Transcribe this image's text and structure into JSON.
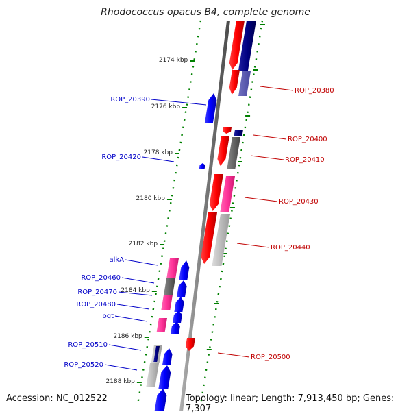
{
  "title": "Rhodococcus opacus B4, complete genome",
  "accession": "Accession: NC_012522",
  "summary": "Topology: linear; Length: 7,913,450 bp; Genes: 7,307",
  "scale_ticks": [
    {
      "label": "2174 kbp"
    },
    {
      "label": "2176 kbp"
    },
    {
      "label": "2178 kbp"
    },
    {
      "label": "2180 kbp"
    },
    {
      "label": "2182 kbp"
    },
    {
      "label": "2184 kbp"
    },
    {
      "label": "2186 kbp"
    },
    {
      "label": "2188 kbp"
    }
  ],
  "labels_right": [
    {
      "text": "ROP_20380"
    },
    {
      "text": "ROP_20400"
    },
    {
      "text": "ROP_20410"
    },
    {
      "text": "ROP_20430"
    },
    {
      "text": "ROP_20440"
    },
    {
      "text": "ROP_20500"
    }
  ],
  "labels_left": [
    {
      "text": "ROP_20390"
    },
    {
      "text": "ROP_20420"
    },
    {
      "text": "alkA"
    },
    {
      "text": "ROP_20460"
    },
    {
      "text": "ROP_20470"
    },
    {
      "text": "ROP_20480"
    },
    {
      "text": "ogt"
    },
    {
      "text": "ROP_20510"
    },
    {
      "text": "ROP_20520"
    }
  ],
  "colors": {
    "forward_gene": "#ff0000",
    "reverse_gene": "#0000ff",
    "forward_cds": "#000080",
    "reverse_cds": "#ff3399",
    "pseudo_dark": "#666666",
    "pseudo_light": "#bbbbbb",
    "backbone": "#888888",
    "tick_green": "#008000"
  }
}
